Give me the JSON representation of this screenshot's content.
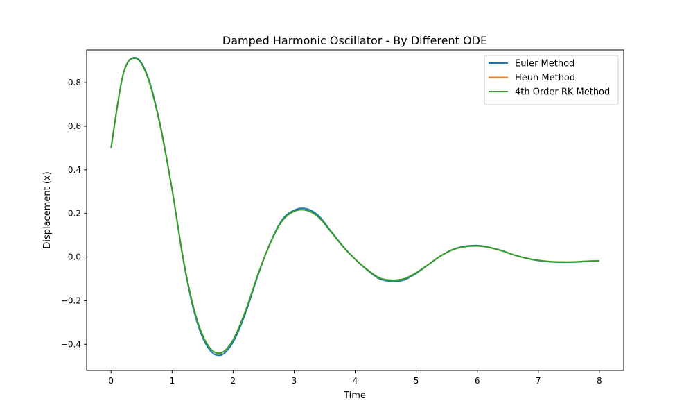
{
  "chart_data": {
    "type": "line",
    "title": "Damped Harmonic Oscillator - By Different ODE",
    "xlabel": "Time",
    "ylabel": "Displacement (x)",
    "xlim": [
      -0.4,
      8.4
    ],
    "ylim": [
      -0.52,
      0.95
    ],
    "xticks": [
      0,
      1,
      2,
      3,
      4,
      5,
      6,
      7,
      8
    ],
    "xtick_labels": [
      "0",
      "1",
      "2",
      "3",
      "4",
      "5",
      "6",
      "7",
      "8"
    ],
    "yticks": [
      -0.4,
      -0.2,
      0.0,
      0.2,
      0.4,
      0.6,
      0.8
    ],
    "ytick_labels": [
      "−0.4",
      "−0.2",
      "0.0",
      "0.2",
      "0.4",
      "0.6",
      "0.8"
    ],
    "grid": false,
    "legend_position": "top-right",
    "x": [
      0,
      0.2,
      0.4,
      0.6,
      0.8,
      1.0,
      1.2,
      1.4,
      1.6,
      1.8,
      2.0,
      2.2,
      2.4,
      2.6,
      2.8,
      3.0,
      3.2,
      3.4,
      3.6,
      3.8,
      4.0,
      4.2,
      4.4,
      4.6,
      4.8,
      5.0,
      5.2,
      5.4,
      5.6,
      5.8,
      6.0,
      6.2,
      6.4,
      6.6,
      6.8,
      7.0,
      7.2,
      7.4,
      7.6,
      7.8,
      8.0
    ],
    "series": [
      {
        "name": "Euler Method",
        "color": "#1f77b4",
        "values": [
          0.5,
          0.84,
          0.915,
          0.83,
          0.615,
          0.31,
          -0.04,
          -0.29,
          -0.42,
          -0.45,
          -0.39,
          -0.26,
          -0.09,
          0.06,
          0.17,
          0.215,
          0.222,
          0.19,
          0.12,
          0.05,
          -0.01,
          -0.06,
          -0.1,
          -0.111,
          -0.105,
          -0.075,
          -0.035,
          0.005,
          0.035,
          0.05,
          0.053,
          0.045,
          0.03,
          0.01,
          -0.005,
          -0.016,
          -0.022,
          -0.024,
          -0.023,
          -0.02,
          -0.017
        ]
      },
      {
        "name": "Heun Method",
        "color": "#ff7f0e",
        "values": [
          0.5,
          0.84,
          0.912,
          0.825,
          0.61,
          0.31,
          -0.035,
          -0.28,
          -0.41,
          -0.44,
          -0.38,
          -0.25,
          -0.085,
          0.058,
          0.165,
          0.21,
          0.215,
          0.183,
          0.117,
          0.048,
          -0.01,
          -0.058,
          -0.096,
          -0.106,
          -0.1,
          -0.072,
          -0.034,
          0.005,
          0.034,
          0.048,
          0.051,
          0.044,
          0.029,
          0.01,
          -0.005,
          -0.015,
          -0.021,
          -0.023,
          -0.022,
          -0.019,
          -0.017
        ]
      },
      {
        "name": "4th Order RK Method",
        "color": "#2ca02c",
        "values": [
          0.5,
          0.84,
          0.912,
          0.825,
          0.61,
          0.31,
          -0.035,
          -0.28,
          -0.41,
          -0.44,
          -0.38,
          -0.25,
          -0.085,
          0.058,
          0.165,
          0.21,
          0.215,
          0.183,
          0.117,
          0.048,
          -0.01,
          -0.058,
          -0.096,
          -0.106,
          -0.1,
          -0.072,
          -0.034,
          0.005,
          0.034,
          0.048,
          0.051,
          0.044,
          0.029,
          0.01,
          -0.005,
          -0.015,
          -0.021,
          -0.023,
          -0.022,
          -0.019,
          -0.017
        ]
      }
    ]
  }
}
